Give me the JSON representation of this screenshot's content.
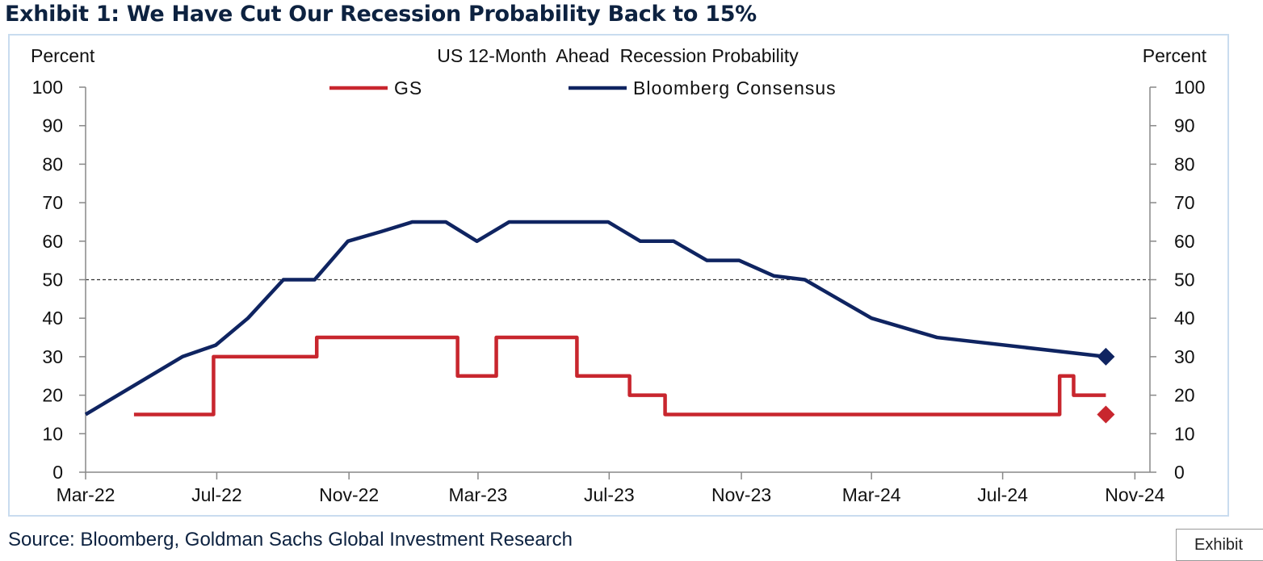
{
  "exhibit_title": "Exhibit 1: We Have Cut Our Recession Probability Back to 15%",
  "source": "Source: Bloomberg, Goldman Sachs Global Investment Research",
  "tab_label": "Exhibit",
  "chart_data": {
    "type": "line",
    "title": "US 12-Month  Ahead  Recession Probability",
    "ylabel_left": "Percent",
    "ylabel_right": "Percent",
    "ylim": [
      0,
      100
    ],
    "yticks": [
      0,
      10,
      20,
      30,
      40,
      50,
      60,
      70,
      80,
      90,
      100
    ],
    "xlim": [
      "2022-03-01",
      "2024-11-15"
    ],
    "xticks": [
      {
        "date": "2022-03-01",
        "label": "Mar-22"
      },
      {
        "date": "2022-07-01",
        "label": "Jul-22"
      },
      {
        "date": "2022-11-01",
        "label": "Nov-22"
      },
      {
        "date": "2023-03-01",
        "label": "Mar-23"
      },
      {
        "date": "2023-07-01",
        "label": "Jul-23"
      },
      {
        "date": "2023-11-01",
        "label": "Nov-23"
      },
      {
        "date": "2024-03-01",
        "label": "Mar-24"
      },
      {
        "date": "2024-07-01",
        "label": "Jul-24"
      },
      {
        "date": "2024-11-01",
        "label": "Nov-24"
      }
    ],
    "reference_line": 50,
    "legend_placement": "top-center",
    "series": [
      {
        "name": "GS",
        "color": "#c8262e",
        "step": true,
        "points": [
          {
            "x": "2022-04-15",
            "y": 15
          },
          {
            "x": "2022-06-28",
            "y": 30
          },
          {
            "x": "2022-10-02",
            "y": 35
          },
          {
            "x": "2023-02-10",
            "y": 25
          },
          {
            "x": "2023-03-18",
            "y": 35
          },
          {
            "x": "2023-06-01",
            "y": 25
          },
          {
            "x": "2023-07-20",
            "y": 20
          },
          {
            "x": "2023-08-22",
            "y": 15
          },
          {
            "x": "2024-08-23",
            "y": 25
          },
          {
            "x": "2024-09-05",
            "y": 20
          },
          {
            "x": "2024-10-05",
            "y": 20
          }
        ],
        "marker": {
          "x": "2024-10-05",
          "y": 15,
          "shape": "diamond"
        }
      },
      {
        "name": "Bloomberg Consensus",
        "color": "#0f2461",
        "step": false,
        "points": [
          {
            "x": "2022-03-01",
            "y": 15
          },
          {
            "x": "2022-05-30",
            "y": 30
          },
          {
            "x": "2022-06-30",
            "y": 33
          },
          {
            "x": "2022-07-30",
            "y": 40
          },
          {
            "x": "2022-09-01",
            "y": 50
          },
          {
            "x": "2022-09-30",
            "y": 50
          },
          {
            "x": "2022-10-31",
            "y": 60
          },
          {
            "x": "2022-12-01",
            "y": 62.5
          },
          {
            "x": "2022-12-30",
            "y": 65
          },
          {
            "x": "2023-01-30",
            "y": 65
          },
          {
            "x": "2023-02-28",
            "y": 60
          },
          {
            "x": "2023-03-30",
            "y": 65
          },
          {
            "x": "2023-06-30",
            "y": 65
          },
          {
            "x": "2023-07-30",
            "y": 60
          },
          {
            "x": "2023-08-30",
            "y": 60
          },
          {
            "x": "2023-09-30",
            "y": 55
          },
          {
            "x": "2023-10-30",
            "y": 55
          },
          {
            "x": "2023-12-01",
            "y": 51
          },
          {
            "x": "2023-12-30",
            "y": 50
          },
          {
            "x": "2024-03-01",
            "y": 40
          },
          {
            "x": "2024-05-01",
            "y": 35
          },
          {
            "x": "2024-10-05",
            "y": 30
          }
        ],
        "marker": {
          "x": "2024-10-05",
          "y": 30,
          "shape": "diamond"
        }
      }
    ]
  }
}
